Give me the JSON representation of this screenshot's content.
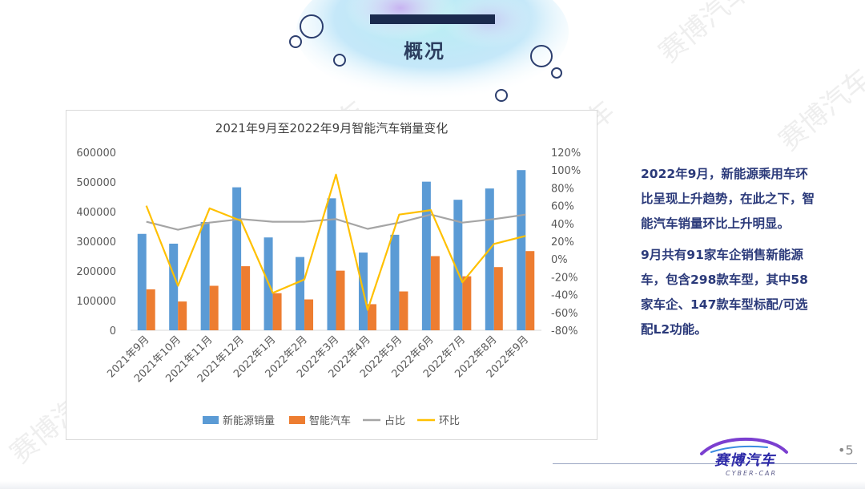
{
  "header": {
    "title": "概况"
  },
  "side_text": {
    "paragraph1": "2022年9月，新能源乘用车环比呈现上升趋势，在此之下，智能汽车销量环比上升明显。",
    "paragraph2": "9月共有91家车企销售新能源车，包含298款车型，其中58家车企、147款车型标配/可选配L2功能。"
  },
  "footer": {
    "logo_text": "赛博汽车",
    "logo_sub": "CYBER-CAR",
    "page_number": "•5"
  },
  "watermark_text": "赛博汽车",
  "colors": {
    "nev": "#5b9bd5",
    "smart": "#ed7d31",
    "share": "#a5a5a5",
    "mom": "#ffc000",
    "accent": "#2b3a7a"
  },
  "chart_data": {
    "type": "bar",
    "title": "2021年9月至2022年9月智能汽车销量变化",
    "categories": [
      "2021年9月",
      "2021年10月",
      "2021年11月",
      "2021年12月",
      "2022年1月",
      "2022年2月",
      "2022年3月",
      "2022年4月",
      "2022年5月",
      "2022年6月",
      "2022年7月",
      "2022年8月",
      "2022年9月"
    ],
    "series": [
      {
        "name": "新能源销量",
        "kind": "bar",
        "axis": "left",
        "values": [
          325000,
          292000,
          365000,
          482000,
          313000,
          247000,
          445000,
          262000,
          322000,
          501000,
          440000,
          478000,
          540000
        ]
      },
      {
        "name": "智能汽车",
        "kind": "bar",
        "axis": "left",
        "values": [
          138000,
          97000,
          150000,
          216000,
          125000,
          104000,
          201000,
          88000,
          131000,
          250000,
          182000,
          213000,
          267000
        ]
      },
      {
        "name": "占比",
        "kind": "line",
        "axis": "right",
        "values": [
          42,
          33,
          41,
          45,
          42,
          42,
          45,
          34,
          41,
          50,
          41,
          45,
          50
        ]
      },
      {
        "name": "环比",
        "kind": "line",
        "axis": "right",
        "values": [
          60,
          -30,
          57,
          43,
          -38,
          -23,
          95,
          -57,
          50,
          55,
          -26,
          17,
          26
        ]
      }
    ],
    "left_ticks": [
      "0",
      "100000",
      "200000",
      "300000",
      "400000",
      "500000",
      "600000"
    ],
    "right_ticks": [
      "-80%",
      "-60%",
      "-40%",
      "-20%",
      "0%",
      "20%",
      "40%",
      "60%",
      "80%",
      "100%",
      "120%"
    ],
    "ylim_left": [
      0,
      600000
    ],
    "ylim_right": [
      -80,
      120
    ],
    "legend_position": "bottom"
  }
}
